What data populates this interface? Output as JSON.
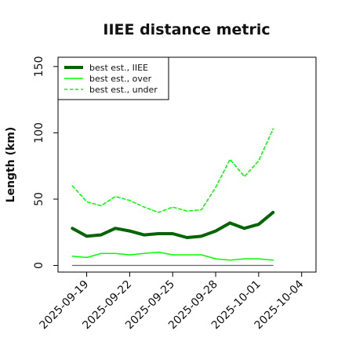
{
  "chart_data": {
    "type": "line",
    "title": "IIEE distance metric",
    "xlabel": "",
    "ylabel": "Length (km)",
    "x": [
      "2025-09-18",
      "2025-09-19",
      "2025-09-20",
      "2025-09-21",
      "2025-09-22",
      "2025-09-23",
      "2025-09-24",
      "2025-09-25",
      "2025-09-26",
      "2025-09-27",
      "2025-09-28",
      "2025-09-29",
      "2025-09-30",
      "2025-10-01",
      "2025-10-02"
    ],
    "xticks": [
      "2025-09-19",
      "2025-09-22",
      "2025-09-25",
      "2025-09-28",
      "2025-10-01",
      "2025-10-04"
    ],
    "xlim": [
      "2025-09-17",
      "2025-10-05"
    ],
    "yticks": [
      0,
      50,
      100,
      150
    ],
    "ylim": [
      -5,
      157
    ],
    "grid": false,
    "legend_position": "top-left",
    "series": [
      {
        "name": "best est., IIEE",
        "color": "#006400",
        "style": "solid-thick",
        "values": [
          28,
          22,
          23,
          28,
          26,
          23,
          24,
          24,
          21,
          22,
          26,
          32,
          28,
          31,
          40
        ]
      },
      {
        "name": "best est., over",
        "color": "#00ff00",
        "style": "solid",
        "values": [
          7,
          6,
          9,
          9,
          8,
          9,
          10,
          8,
          8,
          8,
          5,
          4,
          5,
          5,
          4
        ]
      },
      {
        "name": "best est., under",
        "color": "#00ff00",
        "style": "dashed",
        "values": [
          60,
          48,
          45,
          52,
          49,
          44,
          40,
          44,
          41,
          42,
          59,
          80,
          67,
          79,
          103
        ]
      },
      {
        "name": "",
        "color": "#666666",
        "style": "solid-thin",
        "values": [
          0,
          0,
          0,
          0,
          0,
          0,
          0,
          0,
          0,
          0,
          0,
          0,
          0,
          0,
          0
        ]
      }
    ]
  }
}
